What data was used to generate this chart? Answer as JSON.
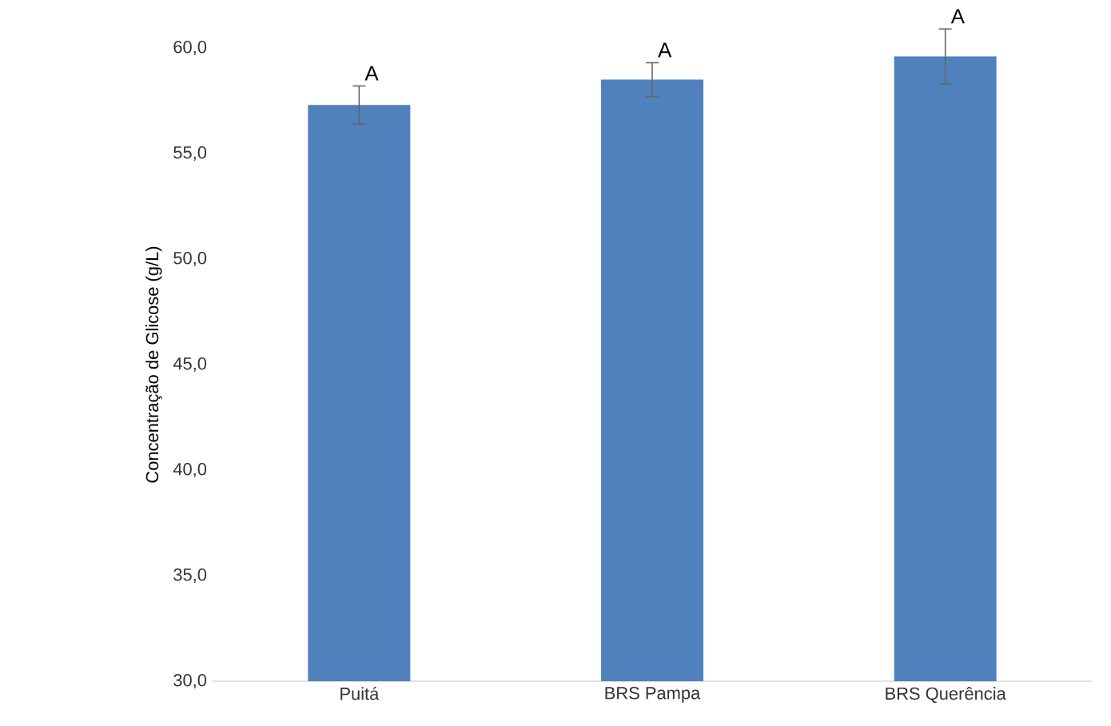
{
  "chart_data": {
    "type": "bar",
    "ylabel": "Concentração de Glicose (g/L)",
    "categories": [
      "Puitá",
      "BRS Pampa",
      "BRS Querência"
    ],
    "values": [
      57.3,
      58.5,
      59.6
    ],
    "errors": [
      0.9,
      0.8,
      1.3
    ],
    "color": "#4f81bd",
    "ylim": [
      30,
      60
    ],
    "yticks": [
      {
        "value": 30,
        "label": "30,0"
      },
      {
        "value": 35,
        "label": "35,0"
      },
      {
        "value": 40,
        "label": "40,0"
      },
      {
        "value": 45,
        "label": "45,0"
      },
      {
        "value": 50,
        "label": "50,0"
      },
      {
        "value": 55,
        "label": "55,0"
      },
      {
        "value": 60,
        "label": "60,0"
      }
    ],
    "annotations": [
      {
        "text": "A",
        "x": "Puitá",
        "y": 58.2
      },
      {
        "text": "A",
        "x": "BRS Pampa",
        "y": 59.3
      },
      {
        "text": "A",
        "x": "BRS Querência",
        "y": 60.9
      }
    ],
    "grid": false
  }
}
